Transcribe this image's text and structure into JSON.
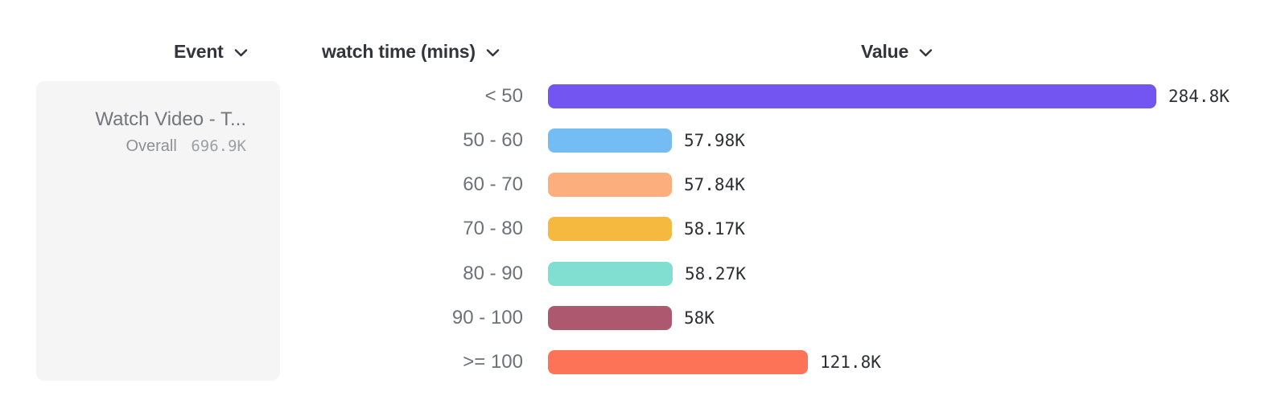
{
  "columns": {
    "event": {
      "label": "Event"
    },
    "breakdown": {
      "label": "watch time (mins)"
    },
    "value": {
      "label": "Value"
    }
  },
  "event_card": {
    "title": "Watch Video - T...",
    "overall_label": "Overall",
    "overall_value": "696.9K"
  },
  "chart_data": {
    "type": "bar",
    "orientation": "horizontal",
    "title": "",
    "xlabel": "Value",
    "ylabel": "watch time (mins)",
    "legend": false,
    "grid": false,
    "xlim": [
      0,
      284800
    ],
    "categories": [
      "< 50",
      "50 - 60",
      "60 - 70",
      "70 - 80",
      "80 - 90",
      "90 - 100",
      ">= 100"
    ],
    "values": [
      284800,
      57980,
      57840,
      58170,
      58270,
      58000,
      121800
    ],
    "value_labels": [
      "284.8K",
      "57.98K",
      "57.84K",
      "58.17K",
      "58.27K",
      "58K",
      "121.8K"
    ],
    "bar_colors": [
      "#7355f1",
      "#74bcf4",
      "#fcae7c",
      "#f6b93f",
      "#80dfd0",
      "#ae5870",
      "#fc7357"
    ]
  },
  "ui_colors": {
    "header_text": "#34353c",
    "row_label": "#6e707a",
    "value_text": "#2e2f33",
    "card_bg": "#f5f5f6"
  }
}
